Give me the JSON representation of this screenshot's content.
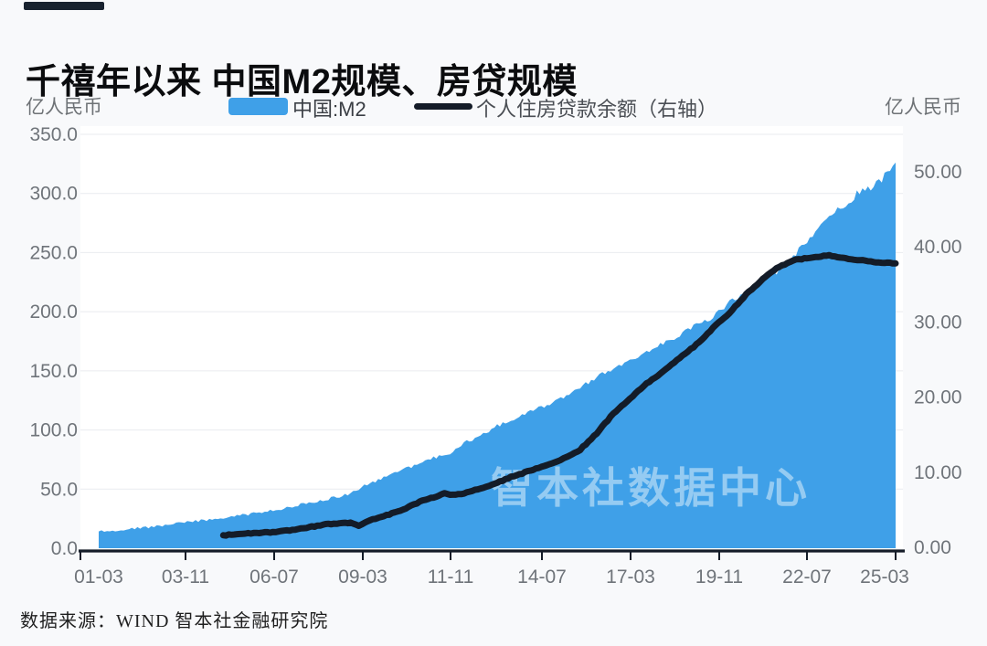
{
  "title": "千禧年以来 中国M2规模、房贷规模",
  "units": {
    "left": "亿人民币",
    "right": "亿人民币"
  },
  "legend": [
    {
      "label": "中国:M2",
      "swatch": "area",
      "color": "#3FA0E8"
    },
    {
      "label": "个人住房贷款余额（右轴）",
      "swatch": "line",
      "color": "#141C28"
    }
  ],
  "source": "数据来源：WIND 智本社金融研究院",
  "colors": {
    "accent_bar": "#18222F",
    "m2_area": "#3FA0E8",
    "loan_line": "#141C28",
    "grid": "#E9EBEF",
    "axis": "#141C28",
    "plot_background": "#FFFFFF",
    "page_background": "#F8F9FB",
    "watermark": "rgba(255,255,255,0.45)"
  },
  "chart_data": {
    "type": "area+line",
    "title": "千禧年以来 中国M2规模、房贷规模",
    "watermark": "智本社数据中心",
    "grid": true,
    "x_axis": {
      "tick_labels": [
        "01-03",
        "03-11",
        "06-07",
        "09-03",
        "11-11",
        "14-07",
        "17-03",
        "19-11",
        "22-07",
        "25-03"
      ],
      "start": "01-03",
      "end": "25-03"
    },
    "y_left": {
      "label": "亿人民币",
      "ticks": [
        "350.0",
        "300.0",
        "250.0",
        "200.0",
        "150.0",
        "100.0",
        "50.0",
        "0.0"
      ],
      "range": [
        0,
        350
      ]
    },
    "y_right": {
      "label": "亿人民币",
      "ticks": [
        "50.00",
        "40.00",
        "30.00",
        "20.00",
        "10.00",
        "0.00"
      ],
      "range": [
        0,
        50
      ]
    },
    "series": [
      {
        "name": "中国:M2",
        "type": "area",
        "axis": "left",
        "color": "#3FA0E8",
        "points": [
          [
            "01-03",
            14.2
          ],
          [
            "01-09",
            15.2
          ],
          [
            "02-03",
            16.7
          ],
          [
            "02-09",
            17.7
          ],
          [
            "03-03",
            19.4
          ],
          [
            "03-09",
            21.4
          ],
          [
            "04-03",
            23.2
          ],
          [
            "04-09",
            24.4
          ],
          [
            "05-03",
            26.5
          ],
          [
            "05-09",
            28.7
          ],
          [
            "06-03",
            31.0
          ],
          [
            "06-09",
            33.2
          ],
          [
            "07-03",
            36.4
          ],
          [
            "07-09",
            39.3
          ],
          [
            "08-03",
            42.3
          ],
          [
            "08-09",
            45.3
          ],
          [
            "09-03",
            53.1
          ],
          [
            "09-09",
            58.5
          ],
          [
            "10-03",
            65.0
          ],
          [
            "10-09",
            69.6
          ],
          [
            "11-03",
            75.8
          ],
          [
            "11-09",
            78.7
          ],
          [
            "12-03",
            89.6
          ],
          [
            "12-09",
            94.4
          ],
          [
            "13-03",
            103.6
          ],
          [
            "13-09",
            107.7
          ],
          [
            "14-03",
            116.1
          ],
          [
            "14-09",
            120.2
          ],
          [
            "15-03",
            127.5
          ],
          [
            "15-09",
            136.0
          ],
          [
            "16-03",
            144.6
          ],
          [
            "16-09",
            151.6
          ],
          [
            "17-03",
            159.9
          ],
          [
            "17-09",
            165.6
          ],
          [
            "18-03",
            173.9
          ],
          [
            "18-09",
            180.2
          ],
          [
            "19-03",
            188.9
          ],
          [
            "19-09",
            195.2
          ],
          [
            "20-03",
            208.1
          ],
          [
            "20-09",
            216.4
          ],
          [
            "21-03",
            227.6
          ],
          [
            "21-09",
            234.8
          ],
          [
            "22-03",
            249.8
          ],
          [
            "22-09",
            262.7
          ],
          [
            "23-03",
            281.5
          ],
          [
            "23-09",
            289.7
          ],
          [
            "24-03",
            304.8
          ],
          [
            "24-06",
            305.0
          ],
          [
            "24-09",
            309.5
          ],
          [
            "25-03",
            326.1
          ]
        ]
      },
      {
        "name": "个人住房贷款余额（右轴）",
        "type": "line",
        "axis": "right",
        "color": "#141C28",
        "points": [
          [
            "04-12",
            1.6
          ],
          [
            "05-06",
            1.75
          ],
          [
            "05-12",
            1.9
          ],
          [
            "06-06",
            2.0
          ],
          [
            "06-12",
            2.25
          ],
          [
            "07-06",
            2.6
          ],
          [
            "07-12",
            3.0
          ],
          [
            "08-06",
            3.2
          ],
          [
            "08-10",
            3.3
          ],
          [
            "09-01",
            2.9
          ],
          [
            "09-03",
            3.3
          ],
          [
            "09-06",
            3.7
          ],
          [
            "09-12",
            4.4
          ],
          [
            "10-06",
            5.2
          ],
          [
            "10-12",
            6.2
          ],
          [
            "11-06",
            6.9
          ],
          [
            "11-08",
            7.15
          ],
          [
            "11-12",
            6.95
          ],
          [
            "12-03",
            7.2
          ],
          [
            "12-09",
            7.8
          ],
          [
            "13-03",
            8.6
          ],
          [
            "13-09",
            9.5
          ],
          [
            "14-03",
            10.2
          ],
          [
            "14-09",
            10.9
          ],
          [
            "15-03",
            11.8
          ],
          [
            "15-09",
            13.0
          ],
          [
            "16-03",
            15.2
          ],
          [
            "16-09",
            17.8
          ],
          [
            "17-03",
            19.8
          ],
          [
            "17-09",
            21.8
          ],
          [
            "18-03",
            23.4
          ],
          [
            "18-09",
            25.2
          ],
          [
            "19-03",
            27.0
          ],
          [
            "19-09",
            29.2
          ],
          [
            "20-03",
            31.2
          ],
          [
            "20-09",
            33.7
          ],
          [
            "21-03",
            35.7
          ],
          [
            "21-09",
            37.4
          ],
          [
            "22-03",
            38.3
          ],
          [
            "22-09",
            38.6
          ],
          [
            "23-03",
            38.9
          ],
          [
            "23-09",
            38.5
          ],
          [
            "24-03",
            38.2
          ],
          [
            "24-09",
            37.9
          ],
          [
            "25-03",
            37.8
          ]
        ]
      }
    ]
  }
}
